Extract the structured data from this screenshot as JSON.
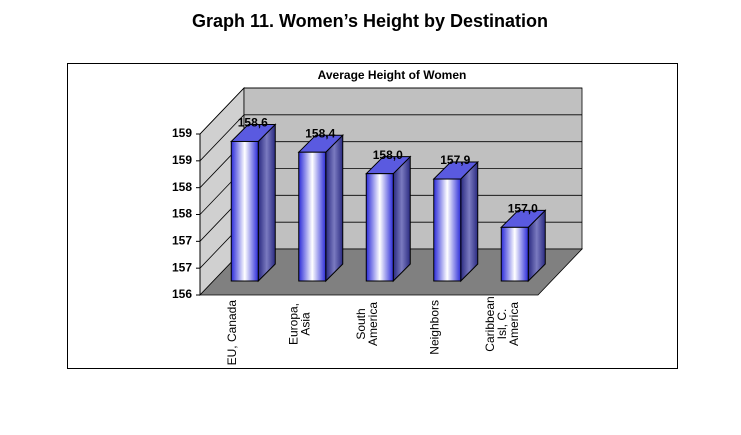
{
  "title": "Graph 11. Women’s Height by Destination",
  "chart_data": {
    "type": "bar3d",
    "title": "Average Height of Women",
    "categories": [
      [
        "EU, Canada"
      ],
      [
        "Europa,",
        "Asia"
      ],
      [
        "South",
        "America"
      ],
      [
        "Neighbors"
      ],
      [
        "Caribbean",
        "Isl, C.",
        "America"
      ]
    ],
    "values": [
      158.6,
      158.4,
      158.0,
      157.9,
      157.0
    ],
    "value_labels": [
      "158,6",
      "158,4",
      "158,0",
      "157,9",
      "157,0"
    ],
    "color": "#3a3ae0",
    "ylim": [
      156,
      159
    ],
    "yticks": [
      156,
      {
        "value": 156.5,
        "label": "157"
      },
      157,
      {
        "value": 157.5,
        "label": "158"
      },
      158,
      {
        "value": 158.5,
        "label": "159"
      },
      159
    ],
    "grid": true
  }
}
